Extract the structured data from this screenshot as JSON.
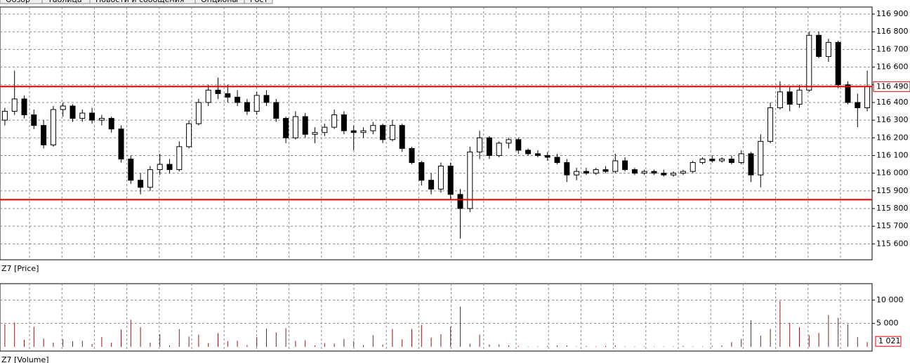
{
  "tabs": [
    "Обзор",
    "Таблица",
    "Новости и сообщения",
    "Опционы",
    "Рост"
  ],
  "chart_data": [
    {
      "type": "candlestick",
      "label": "Z7 [Price]",
      "up_color": "#ffffff",
      "down_color": "#000000",
      "ylim": [
        115510,
        116940
      ],
      "yticks": [
        {
          "value": 115600,
          "label": "115 600"
        },
        {
          "value": 115700,
          "label": "115 700"
        },
        {
          "value": 115800,
          "label": "115 800"
        },
        {
          "value": 115900,
          "label": "115 900"
        },
        {
          "value": 116000,
          "label": "116 000"
        },
        {
          "value": 116100,
          "label": "116 100"
        },
        {
          "value": 116200,
          "label": "116 200"
        },
        {
          "value": 116300,
          "label": "116 300"
        },
        {
          "value": 116400,
          "label": "116 400"
        },
        {
          "value": 116500,
          "label": "116 500"
        },
        {
          "value": 116600,
          "label": "116 600"
        },
        {
          "value": 116700,
          "label": "116 700"
        },
        {
          "value": 116800,
          "label": "116 800"
        },
        {
          "value": 116900,
          "label": "116 900"
        }
      ],
      "grid": true,
      "hlines": [
        116490,
        115850
      ],
      "hline_color": "#e00000",
      "last_price": {
        "value": 116490,
        "label": "116 490"
      },
      "ohlc": [
        [
          116300,
          116370,
          116270,
          116350
        ],
        [
          116350,
          116580,
          116330,
          116420
        ],
        [
          116420,
          116440,
          116310,
          116330
        ],
        [
          116330,
          116360,
          116250,
          116270
        ],
        [
          116270,
          116300,
          116140,
          116160
        ],
        [
          116160,
          116380,
          116150,
          116360
        ],
        [
          116360,
          116400,
          116320,
          116380
        ],
        [
          116380,
          116390,
          116290,
          116310
        ],
        [
          116310,
          116360,
          116290,
          116340
        ],
        [
          116340,
          116370,
          116280,
          116300
        ],
        [
          116300,
          116330,
          116270,
          116310
        ],
        [
          116310,
          116320,
          116230,
          116250
        ],
        [
          116250,
          116270,
          116060,
          116080
        ],
        [
          116080,
          116100,
          115940,
          115960
        ],
        [
          115960,
          116000,
          115880,
          115920
        ],
        [
          115920,
          116040,
          115900,
          116020
        ],
        [
          116020,
          116110,
          115990,
          116050
        ],
        [
          116050,
          116080,
          116000,
          116020
        ],
        [
          116020,
          116180,
          116010,
          116150
        ],
        [
          116150,
          116300,
          116140,
          116280
        ],
        [
          116280,
          116420,
          116270,
          116400
        ],
        [
          116400,
          116500,
          116380,
          116470
        ],
        [
          116470,
          116540,
          116420,
          116450
        ],
        [
          116450,
          116500,
          116400,
          116430
        ],
        [
          116430,
          116470,
          116380,
          116400
        ],
        [
          116400,
          116420,
          116330,
          116350
        ],
        [
          116350,
          116460,
          116330,
          116440
        ],
        [
          116440,
          116470,
          116380,
          116400
        ],
        [
          116400,
          116420,
          116290,
          116310
        ],
        [
          116310,
          116320,
          116170,
          116200
        ],
        [
          116200,
          116350,
          116190,
          116320
        ],
        [
          116320,
          116340,
          116200,
          116220
        ],
        [
          116220,
          116260,
          116170,
          116230
        ],
        [
          116230,
          116280,
          116210,
          116260
        ],
        [
          116260,
          116360,
          116250,
          116330
        ],
        [
          116330,
          116350,
          116220,
          116240
        ],
        [
          116240,
          116270,
          116130,
          116230
        ],
        [
          116230,
          116260,
          116200,
          116240
        ],
        [
          116240,
          116290,
          116220,
          116270
        ],
        [
          116270,
          116280,
          116170,
          116190
        ],
        [
          116190,
          116300,
          116180,
          116270
        ],
        [
          116270,
          116280,
          116120,
          116140
        ],
        [
          116140,
          116150,
          116050,
          116060
        ],
        [
          116060,
          116070,
          115930,
          115960
        ],
        [
          115960,
          116000,
          115880,
          115910
        ],
        [
          115910,
          116060,
          115890,
          116040
        ],
        [
          116040,
          116060,
          115850,
          115880
        ],
        [
          115880,
          115910,
          115630,
          115800
        ],
        [
          115800,
          116150,
          115780,
          116120
        ],
        [
          116120,
          116240,
          116080,
          116200
        ],
        [
          116200,
          116210,
          116080,
          116100
        ],
        [
          116100,
          116180,
          116090,
          116170
        ],
        [
          116170,
          116200,
          116140,
          116190
        ],
        [
          116190,
          116200,
          116110,
          116130
        ],
        [
          116130,
          116140,
          116100,
          116110
        ],
        [
          116110,
          116130,
          116090,
          116100
        ],
        [
          116100,
          116120,
          116070,
          116090
        ],
        [
          116090,
          116110,
          116050,
          116060
        ],
        [
          116060,
          116080,
          115950,
          115990
        ],
        [
          115990,
          116030,
          115960,
          116010
        ],
        [
          116010,
          116030,
          115990,
          116000
        ],
        [
          116000,
          116030,
          115990,
          116020
        ],
        [
          116020,
          116040,
          116000,
          116010
        ],
        [
          116010,
          116110,
          116000,
          116070
        ],
        [
          116070,
          116090,
          116010,
          116020
        ],
        [
          116020,
          116030,
          115990,
          116000
        ],
        [
          116000,
          116020,
          115990,
          116010
        ],
        [
          116010,
          116020,
          115990,
          116000
        ],
        [
          116000,
          116020,
          115980,
          115990
        ],
        [
          115990,
          116010,
          115980,
          116000
        ],
        [
          116000,
          116020,
          115990,
          116010
        ],
        [
          116010,
          116070,
          116000,
          116060
        ],
        [
          116060,
          116090,
          116050,
          116080
        ],
        [
          116080,
          116100,
          116060,
          116070
        ],
        [
          116070,
          116090,
          116060,
          116080
        ],
        [
          116080,
          116100,
          116050,
          116060
        ],
        [
          116060,
          116130,
          116050,
          116110
        ],
        [
          116110,
          116120,
          115950,
          115990
        ],
        [
          115990,
          116220,
          115920,
          116180
        ],
        [
          116180,
          116400,
          116170,
          116370
        ],
        [
          116370,
          116520,
          116360,
          116460
        ],
        [
          116460,
          116490,
          116350,
          116390
        ],
        [
          116390,
          116500,
          116370,
          116470
        ],
        [
          116470,
          116800,
          116460,
          116780
        ],
        [
          116780,
          116800,
          116650,
          116660
        ],
        [
          116660,
          116760,
          116630,
          116740
        ],
        [
          116740,
          116750,
          116480,
          116500
        ],
        [
          116500,
          116520,
          116390,
          116400
        ],
        [
          116400,
          116450,
          116260,
          116370
        ],
        [
          116370,
          116580,
          116350,
          116490
        ]
      ]
    },
    {
      "type": "bar",
      "label": "Z7 [Volume]",
      "color": "#8b1a1a",
      "ylim": [
        0,
        13500
      ],
      "yticks": [
        {
          "value": 5000,
          "label": "5 000"
        },
        {
          "value": 10000,
          "label": "10 000"
        }
      ],
      "grid": true,
      "last_value": {
        "value": 1021,
        "label": "1 021"
      },
      "values": [
        4800,
        5200,
        1500,
        4300,
        1800,
        900,
        1600,
        1200,
        1300,
        600,
        2100,
        900,
        3700,
        5800,
        4200,
        900,
        2700,
        300,
        3800,
        2200,
        2600,
        800,
        2900,
        1200,
        1300,
        400,
        2100,
        3900,
        3100,
        4000,
        1300,
        1400,
        300,
        800,
        700,
        1700,
        1200,
        400,
        2500,
        500,
        3800,
        1600,
        3800,
        4700,
        2000,
        2700,
        4300,
        8600,
        700,
        2600,
        500,
        500,
        300,
        200,
        100,
        100,
        200,
        300,
        300,
        100,
        200,
        100,
        200,
        300,
        100,
        100,
        100,
        100,
        100,
        100,
        200,
        100,
        100,
        200,
        300,
        1000,
        1700,
        5700,
        2400,
        3800,
        9800,
        5100,
        4200,
        2500,
        3000,
        6800,
        6200,
        4800,
        2100,
        1021
      ]
    }
  ]
}
